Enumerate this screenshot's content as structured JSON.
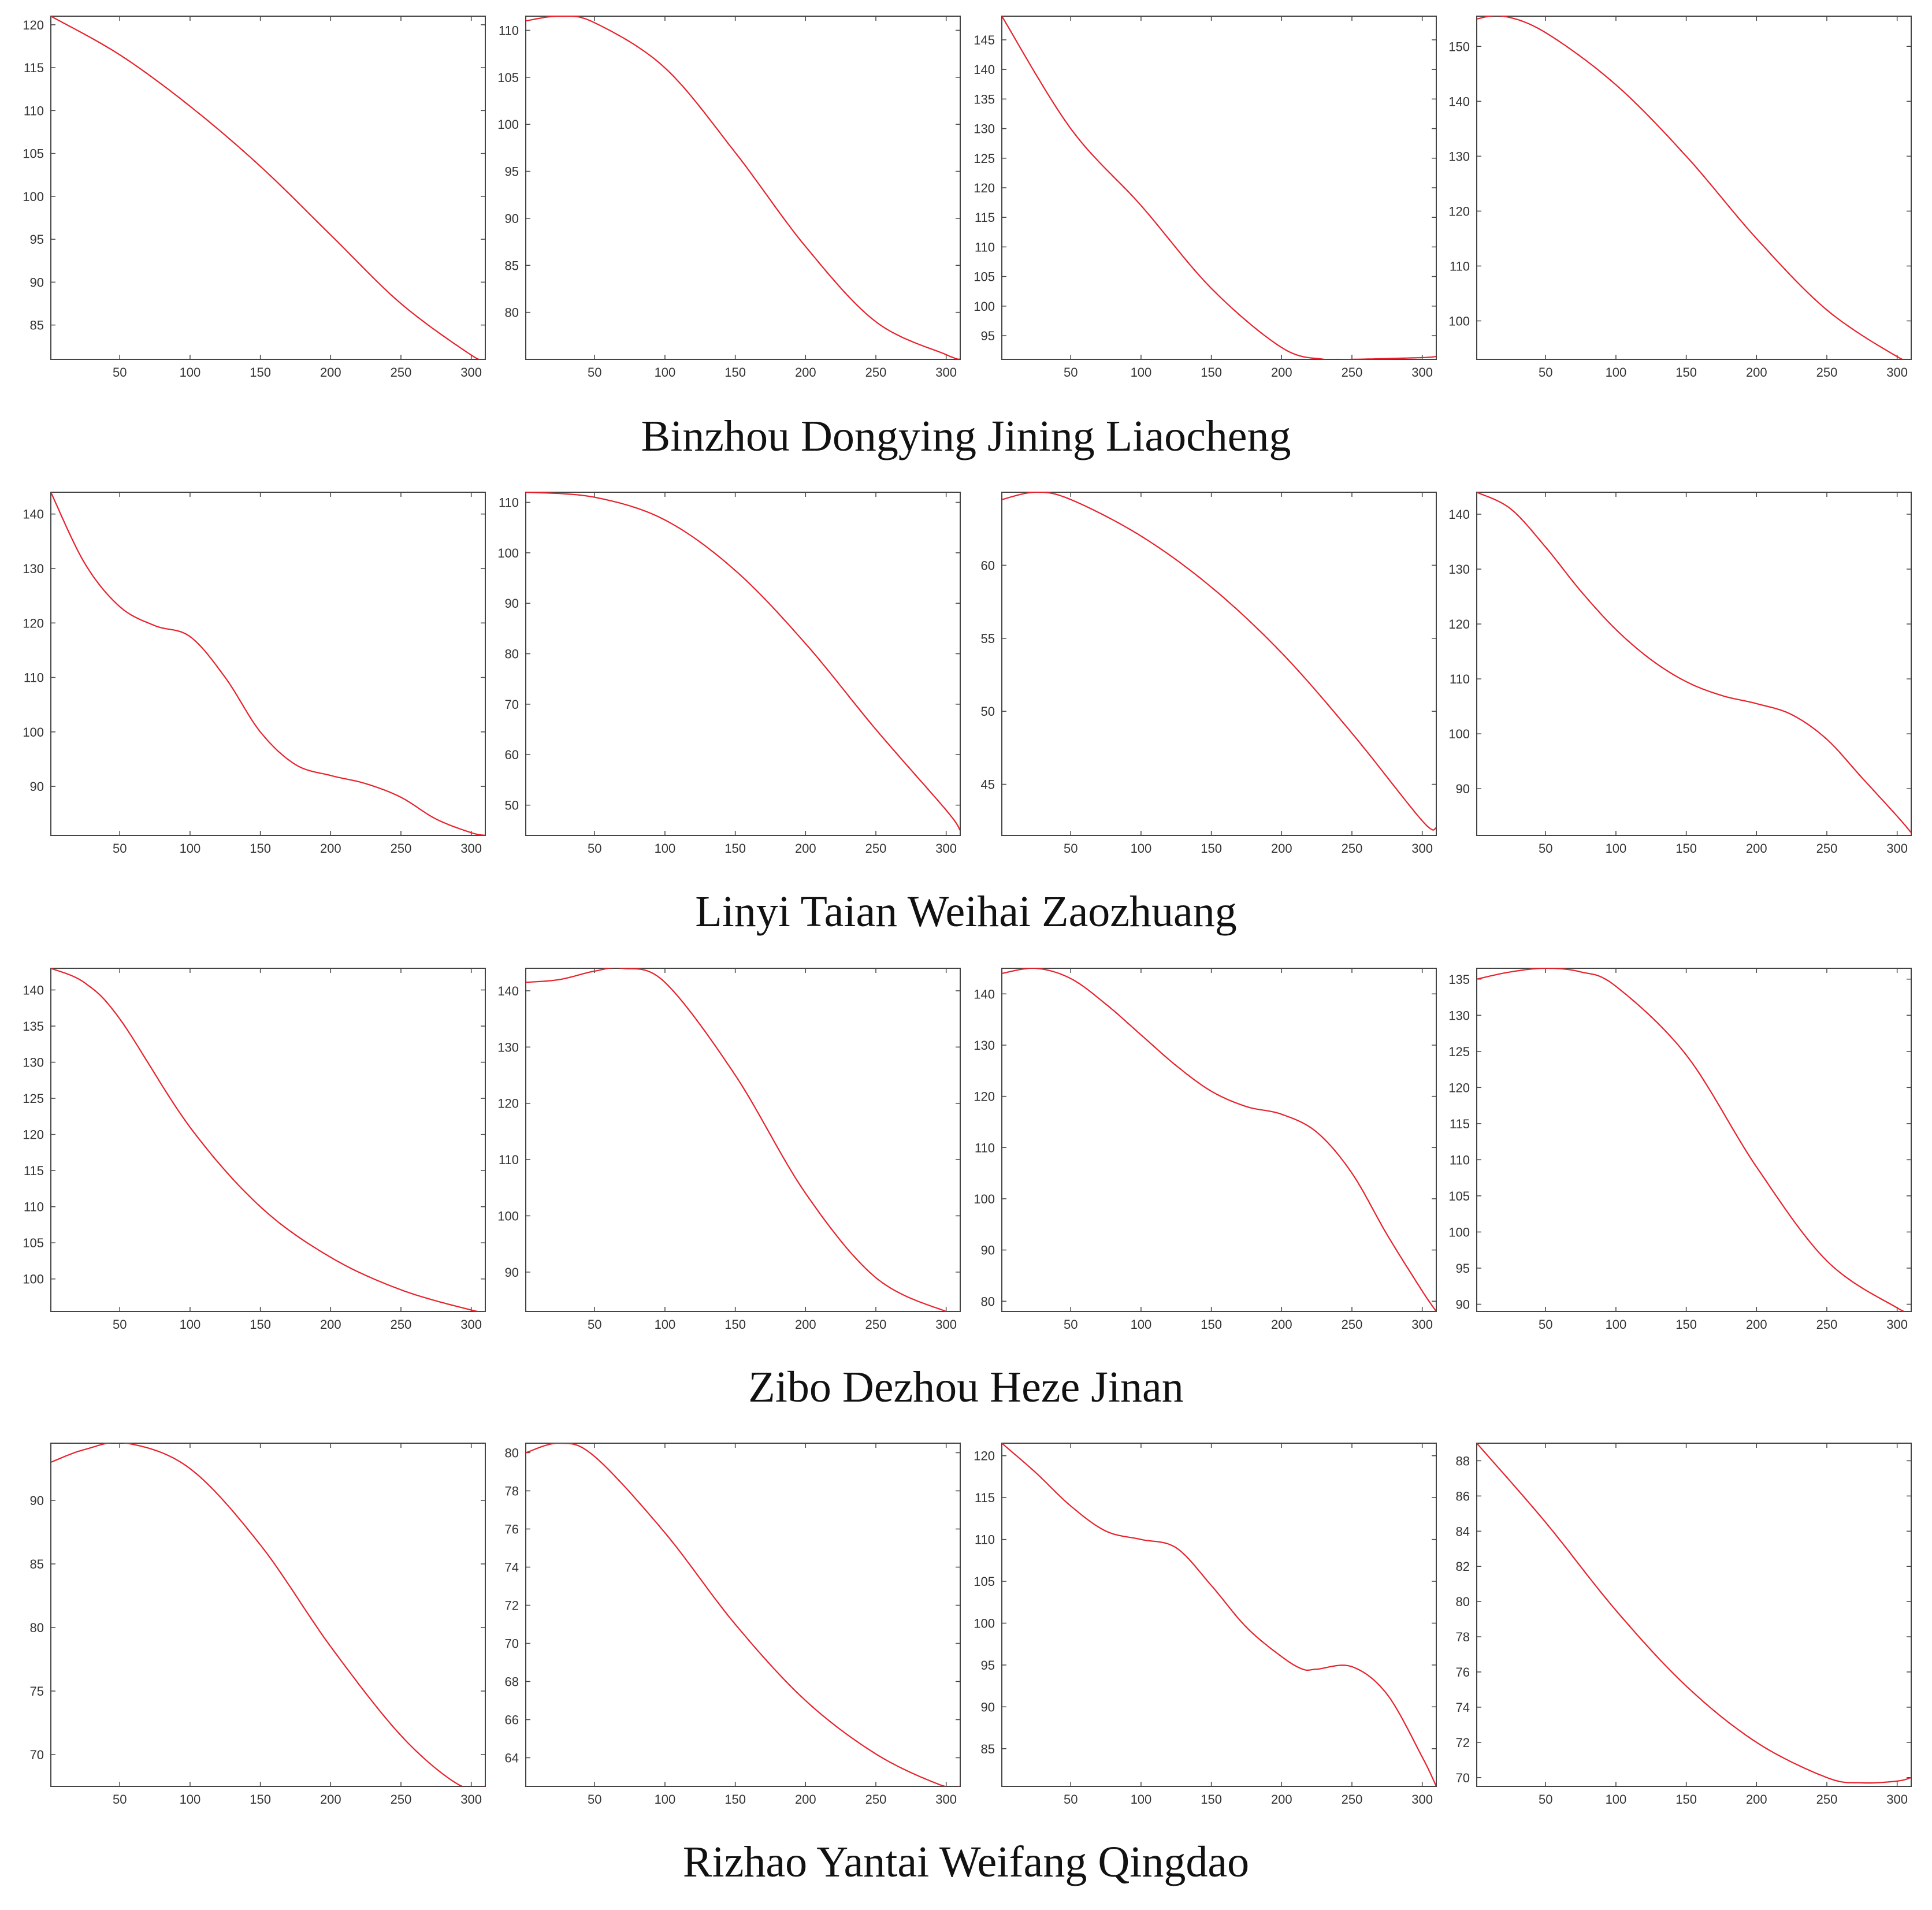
{
  "colors": {
    "line": "#e8212b",
    "axis": "#444444",
    "background": "#ffffff"
  },
  "rows": [
    {
      "caption": "Binzhou Dongying Jining Liaocheng"
    },
    {
      "caption": "Linyi Taian Weihai Zaozhuang"
    },
    {
      "caption": "Zibo Dezhou Heze Jinan"
    },
    {
      "caption": "Rizhao Yantai Weifang Qingdao"
    }
  ],
  "chart_data": [
    {
      "type": "line",
      "xlim": [
        1,
        310
      ],
      "ylim": [
        81,
        121
      ],
      "xticks": [
        50,
        100,
        150,
        200,
        250,
        300
      ],
      "yticks": [
        85,
        90,
        95,
        100,
        105,
        110,
        115,
        120
      ],
      "x": [
        1,
        50,
        100,
        150,
        200,
        250,
        300,
        310
      ],
      "y": [
        121,
        116.5,
        110.5,
        103.5,
        95.5,
        87.5,
        81.5,
        81
      ]
    },
    {
      "type": "line",
      "xlim": [
        1,
        310
      ],
      "ylim": [
        75,
        111.5
      ],
      "xticks": [
        50,
        100,
        150,
        200,
        250,
        300
      ],
      "yticks": [
        80,
        85,
        90,
        95,
        100,
        105,
        110
      ],
      "x": [
        1,
        25,
        50,
        100,
        150,
        200,
        250,
        300,
        310
      ],
      "y": [
        111,
        111.5,
        110.8,
        106,
        97,
        87,
        79,
        75.5,
        75
      ]
    },
    {
      "type": "line",
      "xlim": [
        1,
        310
      ],
      "ylim": [
        91,
        149
      ],
      "xticks": [
        50,
        100,
        150,
        200,
        250,
        300
      ],
      "yticks": [
        95,
        100,
        105,
        110,
        115,
        120,
        125,
        130,
        135,
        140,
        145
      ],
      "x": [
        1,
        50,
        100,
        150,
        200,
        230,
        250,
        300,
        310
      ],
      "y": [
        149,
        130,
        117,
        103,
        93,
        91,
        91,
        91.3,
        91.5
      ]
    },
    {
      "type": "line",
      "xlim": [
        1,
        310
      ],
      "ylim": [
        93,
        155.5
      ],
      "xticks": [
        50,
        100,
        150,
        200,
        250,
        300
      ],
      "yticks": [
        100,
        110,
        120,
        130,
        140,
        150
      ],
      "x": [
        1,
        20,
        50,
        100,
        150,
        200,
        250,
        300,
        310
      ],
      "y": [
        155,
        155.5,
        152.5,
        143,
        130,
        115,
        102,
        93.5,
        93
      ]
    },
    {
      "type": "line",
      "xlim": [
        1,
        310
      ],
      "ylim": [
        81,
        144
      ],
      "xticks": [
        50,
        100,
        150,
        200,
        250,
        300
      ],
      "yticks": [
        90,
        100,
        110,
        120,
        130,
        140
      ],
      "x": [
        1,
        25,
        50,
        75,
        100,
        125,
        150,
        175,
        200,
        225,
        250,
        275,
        300,
        310
      ],
      "y": [
        144,
        131,
        123,
        119.5,
        117.5,
        110,
        100,
        94,
        92,
        90.5,
        88,
        84,
        81.5,
        81
      ]
    },
    {
      "type": "line",
      "xlim": [
        1,
        310
      ],
      "ylim": [
        44,
        112
      ],
      "xticks": [
        50,
        100,
        150,
        200,
        250,
        300
      ],
      "yticks": [
        50,
        60,
        70,
        80,
        90,
        100,
        110
      ],
      "x": [
        1,
        50,
        100,
        150,
        200,
        250,
        300,
        310
      ],
      "y": [
        112,
        111,
        106.5,
        96.5,
        82,
        65,
        49,
        45
      ]
    },
    {
      "type": "line",
      "xlim": [
        1,
        310
      ],
      "ylim": [
        41.5,
        65
      ],
      "xticks": [
        50,
        100,
        150,
        200,
        250,
        300
      ],
      "yticks": [
        45,
        50,
        55,
        60
      ],
      "x": [
        1,
        25,
        50,
        100,
        150,
        200,
        250,
        300,
        310
      ],
      "y": [
        64.5,
        65,
        64.5,
        62,
        58.5,
        54,
        48.5,
        42.5,
        42
      ]
    },
    {
      "type": "line",
      "xlim": [
        1,
        310
      ],
      "ylim": [
        81.5,
        144
      ],
      "xticks": [
        50,
        100,
        150,
        200,
        250,
        300
      ],
      "yticks": [
        90,
        100,
        110,
        120,
        130,
        140
      ],
      "x": [
        1,
        25,
        50,
        75,
        100,
        125,
        150,
        175,
        200,
        225,
        250,
        275,
        300,
        310
      ],
      "y": [
        144,
        141,
        134,
        126,
        119,
        113.5,
        109.5,
        107,
        105.5,
        103.5,
        99,
        92,
        85,
        82
      ]
    },
    {
      "type": "line",
      "xlim": [
        1,
        310
      ],
      "ylim": [
        95.5,
        143
      ],
      "xticks": [
        50,
        100,
        150,
        200,
        250,
        300
      ],
      "yticks": [
        100,
        105,
        110,
        115,
        120,
        125,
        130,
        135,
        140
      ],
      "x": [
        1,
        25,
        50,
        100,
        150,
        200,
        250,
        300,
        310
      ],
      "y": [
        143,
        141,
        136,
        121,
        110,
        103,
        98.5,
        95.7,
        95.5
      ]
    },
    {
      "type": "line",
      "xlim": [
        1,
        310
      ],
      "ylim": [
        83,
        144
      ],
      "xticks": [
        50,
        100,
        150,
        200,
        250,
        300
      ],
      "yticks": [
        90,
        100,
        110,
        120,
        130,
        140
      ],
      "x": [
        1,
        25,
        50,
        70,
        100,
        150,
        200,
        250,
        300,
        310
      ],
      "y": [
        141.5,
        142,
        143.5,
        144,
        141.5,
        125,
        104,
        89,
        83,
        83
      ]
    },
    {
      "type": "line",
      "xlim": [
        1,
        310
      ],
      "ylim": [
        78,
        145
      ],
      "xticks": [
        50,
        100,
        150,
        200,
        250,
        300
      ],
      "yticks": [
        80,
        90,
        100,
        110,
        120,
        130,
        140
      ],
      "x": [
        1,
        25,
        50,
        75,
        100,
        125,
        150,
        175,
        200,
        225,
        250,
        275,
        300,
        310
      ],
      "y": [
        144,
        145,
        143,
        138,
        132,
        126,
        121,
        118,
        116.5,
        113,
        105,
        93,
        82,
        78
      ]
    },
    {
      "type": "line",
      "xlim": [
        1,
        310
      ],
      "ylim": [
        89,
        136.5
      ],
      "xticks": [
        50,
        100,
        150,
        200,
        250,
        300
      ],
      "yticks": [
        90,
        95,
        100,
        105,
        110,
        115,
        120,
        125,
        130,
        135
      ],
      "x": [
        1,
        25,
        50,
        75,
        100,
        150,
        200,
        250,
        300,
        310
      ],
      "y": [
        135,
        136,
        136.5,
        136,
        134,
        124.5,
        109,
        96,
        89.5,
        89
      ]
    },
    {
      "type": "line",
      "xlim": [
        1,
        310
      ],
      "ylim": [
        67.5,
        94.5
      ],
      "xticks": [
        50,
        100,
        150,
        200,
        250,
        300
      ],
      "yticks": [
        70,
        75,
        80,
        85,
        90
      ],
      "x": [
        1,
        25,
        55,
        100,
        150,
        200,
        250,
        290,
        310
      ],
      "y": [
        93,
        94,
        94.5,
        92.5,
        86.5,
        78.5,
        71.5,
        67.7,
        67.5
      ]
    },
    {
      "type": "line",
      "xlim": [
        1,
        310
      ],
      "ylim": [
        62.5,
        80.5
      ],
      "xticks": [
        50,
        100,
        150,
        200,
        250,
        300
      ],
      "yticks": [
        64,
        66,
        68,
        70,
        72,
        74,
        76,
        78,
        80
      ],
      "x": [
        1,
        25,
        50,
        100,
        150,
        200,
        250,
        295,
        310
      ],
      "y": [
        80,
        80.5,
        79.8,
        75.8,
        71,
        67,
        64.2,
        62.6,
        62.5
      ]
    },
    {
      "type": "line",
      "xlim": [
        1,
        310
      ],
      "ylim": [
        80.5,
        121.5
      ],
      "xticks": [
        50,
        100,
        150,
        200,
        250,
        300
      ],
      "yticks": [
        85,
        90,
        95,
        100,
        105,
        110,
        115,
        120
      ],
      "x": [
        1,
        25,
        50,
        75,
        100,
        125,
        150,
        175,
        200,
        215,
        225,
        250,
        275,
        300,
        310
      ],
      "y": [
        121.5,
        118,
        114,
        111,
        110,
        109,
        104.5,
        99.5,
        96,
        94.5,
        94.5,
        94.8,
        91.5,
        84,
        80.5
      ]
    },
    {
      "type": "line",
      "xlim": [
        1,
        310
      ],
      "ylim": [
        69.5,
        89
      ],
      "xticks": [
        50,
        100,
        150,
        200,
        250,
        300
      ],
      "yticks": [
        70,
        72,
        74,
        76,
        78,
        80,
        82,
        84,
        86,
        88
      ],
      "x": [
        1,
        50,
        100,
        150,
        200,
        250,
        275,
        300,
        310
      ],
      "y": [
        89,
        84.5,
        79.5,
        75.2,
        72,
        70,
        69.7,
        69.8,
        70
      ]
    }
  ]
}
